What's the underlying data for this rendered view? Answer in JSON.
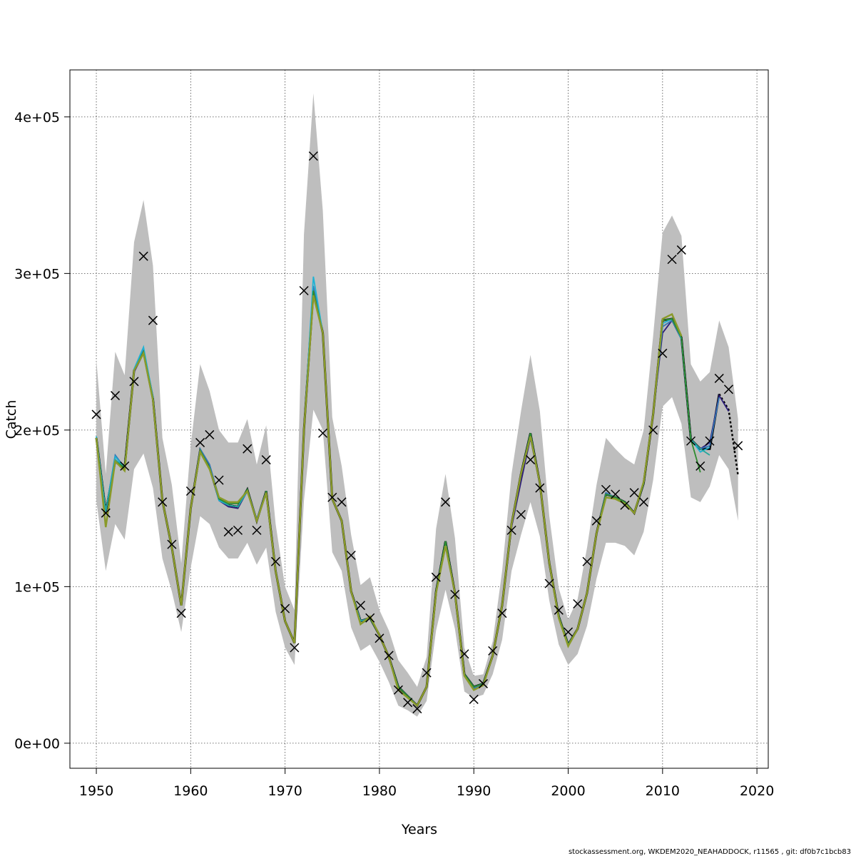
{
  "chart_data": {
    "type": "line",
    "title": "",
    "xlabel": "Years",
    "ylabel": "Catch",
    "xlim": [
      1947.2,
      2021.2
    ],
    "ylim": [
      -16000,
      430000
    ],
    "x_ticks": [
      1950,
      1960,
      1970,
      1980,
      1990,
      2000,
      2010,
      2020
    ],
    "x_tick_labels": [
      "1950",
      "1960",
      "1970",
      "1980",
      "1990",
      "2000",
      "2010",
      "2020"
    ],
    "y_ticks": [
      0,
      100000,
      200000,
      300000,
      400000
    ],
    "y_tick_labels": [
      "0e+00",
      "1e+05",
      "2e+05",
      "3e+05",
      "4e+05"
    ],
    "grid": true,
    "years": [
      1950,
      1951,
      1952,
      1953,
      1954,
      1955,
      1956,
      1957,
      1958,
      1959,
      1960,
      1961,
      1962,
      1963,
      1964,
      1965,
      1966,
      1967,
      1968,
      1969,
      1970,
      1971,
      1972,
      1973,
      1974,
      1975,
      1976,
      1977,
      1978,
      1979,
      1980,
      1981,
      1982,
      1983,
      1984,
      1985,
      1986,
      1987,
      1988,
      1989,
      1990,
      1991,
      1992,
      1993,
      1994,
      1995,
      1996,
      1997,
      1998,
      1999,
      2000,
      2001,
      2002,
      2003,
      2004,
      2005,
      2006,
      2007,
      2008,
      2009,
      2010,
      2011,
      2012,
      2013,
      2014,
      2015,
      2016,
      2017,
      2018
    ],
    "observed": [
      210000,
      147000,
      222000,
      177000,
      231000,
      311000,
      270000,
      154000,
      127000,
      83000,
      161000,
      192000,
      197000,
      168000,
      135000,
      136000,
      188000,
      136000,
      181000,
      116000,
      86000,
      61000,
      289000,
      375000,
      198000,
      157000,
      154000,
      120000,
      88000,
      80000,
      67000,
      56000,
      34000,
      26000,
      22000,
      45000,
      106000,
      154000,
      95000,
      57000,
      28000,
      38000,
      59000,
      83000,
      136000,
      146000,
      181000,
      163000,
      102000,
      85000,
      71000,
      89000,
      116000,
      142000,
      162000,
      159000,
      152000,
      160000,
      154000,
      200000,
      249000,
      309000,
      315000,
      193000,
      177000,
      193000,
      233000,
      226000,
      190000
    ],
    "series": [
      {
        "color": "#000000",
        "values": [
          195000,
          148000,
          180000,
          176000,
          238000,
          250000,
          220000,
          155000,
          125000,
          88000,
          150000,
          187000,
          176000,
          156000,
          152000,
          151000,
          162000,
          142000,
          161000,
          110000,
          78000,
          64000,
          200000,
          289000,
          262000,
          156000,
          142000,
          97000,
          78000,
          80000,
          69000,
          55000,
          36000,
          30000,
          24000,
          36000,
          97000,
          129000,
          96000,
          44000,
          36000,
          38000,
          56000,
          88000,
          140000,
          172000,
          198000,
          166000,
          115000,
          81000,
          63000,
          73000,
          96000,
          134000,
          159000,
          157000,
          154000,
          147000,
          166000,
          210000,
          270000,
          271000,
          259000,
          194000,
          188000,
          188000,
          223000,
          213000,
          171000
        ]
      },
      {
        "color": "#2d1e7a",
        "values": [
          195000,
          148000,
          181000,
          176000,
          237000,
          249000,
          219000,
          155000,
          125000,
          88000,
          150000,
          187000,
          176000,
          155000,
          151000,
          150000,
          161000,
          142000,
          160000,
          110000,
          78000,
          64000,
          200000,
          289000,
          262000,
          156000,
          142000,
          97000,
          78000,
          80000,
          69000,
          55000,
          36000,
          30000,
          24000,
          36000,
          96000,
          128000,
          95000,
          44000,
          35000,
          38000,
          56000,
          88000,
          138000,
          167000,
          195000,
          165000,
          115000,
          81000,
          63000,
          73000,
          96000,
          134000,
          159000,
          157000,
          154000,
          147000,
          166000,
          210000,
          262000,
          270000,
          258000,
          194000,
          188000,
          192000,
          222000,
          212000
        ]
      },
      {
        "color": "#3575b5",
        "values": [
          195000,
          148000,
          184000,
          176000,
          238000,
          251000,
          221000,
          155000,
          125000,
          88000,
          150000,
          188000,
          178000,
          157000,
          152000,
          151000,
          162000,
          143000,
          161000,
          111000,
          78000,
          64000,
          201000,
          292000,
          262000,
          156000,
          142000,
          97000,
          78000,
          80000,
          69000,
          55000,
          36000,
          30000,
          24000,
          36000,
          97000,
          129000,
          95000,
          44000,
          35000,
          38000,
          56000,
          88000,
          140000,
          172000,
          198000,
          166000,
          115000,
          81000,
          63000,
          73000,
          96000,
          134000,
          160000,
          157000,
          154000,
          147000,
          166000,
          210000,
          266000,
          270000,
          259000,
          194000,
          188000,
          190000,
          221000
        ]
      },
      {
        "color": "#1fb3d4",
        "values": [
          196000,
          148000,
          183000,
          176000,
          239000,
          253000,
          221000,
          155000,
          125000,
          88000,
          150000,
          186000,
          176000,
          155000,
          152000,
          151000,
          161000,
          142000,
          160000,
          110000,
          78000,
          64000,
          200000,
          298000,
          262000,
          156000,
          142000,
          97000,
          78000,
          80000,
          69000,
          55000,
          36000,
          30000,
          24000,
          36000,
          97000,
          129000,
          96000,
          44000,
          36000,
          38000,
          56000,
          88000,
          140000,
          172000,
          197000,
          166000,
          115000,
          81000,
          63000,
          73000,
          96000,
          134000,
          159000,
          157000,
          154000,
          147000,
          166000,
          210000,
          268000,
          271000,
          258000,
          194000,
          186000,
          189000
        ]
      },
      {
        "color": "#26a69a",
        "values": [
          195000,
          148000,
          181000,
          176000,
          238000,
          250000,
          220000,
          155000,
          125000,
          88000,
          150000,
          187000,
          176000,
          156000,
          152000,
          151000,
          162000,
          142000,
          161000,
          110000,
          78000,
          64000,
          200000,
          289000,
          262000,
          156000,
          142000,
          97000,
          78000,
          80000,
          69000,
          55000,
          36000,
          30000,
          24000,
          36000,
          97000,
          129000,
          96000,
          44000,
          36000,
          38000,
          56000,
          88000,
          140000,
          172000,
          198000,
          166000,
          115000,
          81000,
          63000,
          73000,
          96000,
          134000,
          159000,
          157000,
          154000,
          147000,
          166000,
          210000,
          270000,
          271000,
          259000,
          194000,
          188000,
          184000
        ]
      },
      {
        "color": "#2e8b2e",
        "values": [
          195000,
          138000,
          180000,
          176000,
          238000,
          250000,
          220000,
          155000,
          125000,
          88000,
          150000,
          187000,
          176000,
          156000,
          153000,
          153000,
          162000,
          142000,
          161000,
          110000,
          78000,
          64000,
          200000,
          289000,
          262000,
          156000,
          142000,
          97000,
          76000,
          80000,
          69000,
          55000,
          36000,
          30000,
          24000,
          36000,
          97000,
          129000,
          96000,
          44000,
          36000,
          38000,
          56000,
          88000,
          140000,
          172000,
          198000,
          166000,
          115000,
          81000,
          63000,
          73000,
          96000,
          134000,
          159000,
          157000,
          154000,
          147000,
          166000,
          210000,
          270000,
          271000,
          259000,
          194000,
          173000
        ]
      },
      {
        "color": "#8a9a2a",
        "values": [
          195000,
          138000,
          180000,
          174000,
          238000,
          249000,
          219000,
          155000,
          125000,
          88000,
          150000,
          186000,
          175000,
          157000,
          154000,
          154000,
          161000,
          142000,
          160000,
          110000,
          78000,
          64000,
          200000,
          286000,
          262000,
          156000,
          142000,
          97000,
          76000,
          81000,
          69000,
          55000,
          34000,
          29000,
          24000,
          36000,
          96000,
          126000,
          96000,
          43000,
          34000,
          37000,
          56000,
          88000,
          140000,
          172000,
          196000,
          166000,
          115000,
          80000,
          62000,
          73000,
          96000,
          134000,
          157000,
          156000,
          153000,
          147000,
          167000,
          210000,
          271000,
          274000,
          260000
        ]
      }
    ],
    "confidence_band": {
      "upper": [
        245000,
        172000,
        250000,
        235000,
        320000,
        347000,
        305000,
        195000,
        165000,
        115000,
        190000,
        242000,
        225000,
        200000,
        192000,
        192000,
        207000,
        178000,
        203000,
        140000,
        100000,
        85000,
        325000,
        415000,
        340000,
        208000,
        177000,
        133000,
        101000,
        106000,
        85000,
        72000,
        53000,
        45000,
        36000,
        55000,
        137000,
        172000,
        131000,
        61000,
        43000,
        44000,
        65000,
        110000,
        172000,
        212000,
        248000,
        212000,
        145000,
        99000,
        79000,
        92000,
        125000,
        165000,
        195000,
        188000,
        182000,
        178000,
        200000,
        260000,
        326000,
        337000,
        324000,
        242000,
        231000,
        237000,
        270000,
        253000,
        207000
      ],
      "lower": [
        155000,
        110000,
        140000,
        130000,
        175000,
        185000,
        163000,
        118000,
        97000,
        71000,
        112000,
        145000,
        140000,
        125000,
        118000,
        118000,
        128000,
        114000,
        125000,
        84000,
        61000,
        50000,
        155000,
        213000,
        200000,
        122000,
        110000,
        74000,
        59000,
        63000,
        52000,
        39000,
        24000,
        21000,
        17000,
        27000,
        72000,
        98000,
        73000,
        33000,
        29000,
        31000,
        44000,
        66000,
        110000,
        133000,
        154000,
        132000,
        91000,
        63000,
        50000,
        57000,
        75000,
        105000,
        128000,
        128000,
        126000,
        120000,
        135000,
        168000,
        215000,
        221000,
        204000,
        157000,
        154000,
        164000,
        184000,
        175000,
        142000
      ]
    },
    "footer": "stockassessment.org, WKDEM2020_NEAHADDOCK, r11565 , git: df0b7c1bcb83"
  }
}
